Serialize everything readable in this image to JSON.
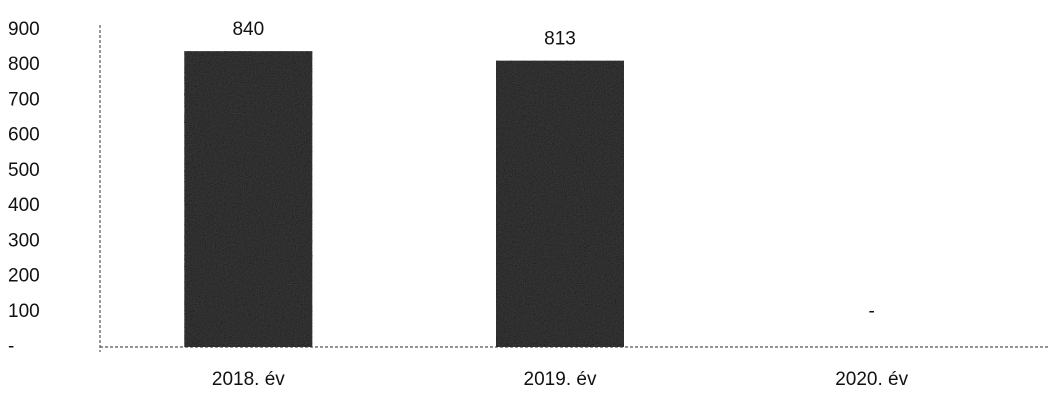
{
  "chart_data": {
    "type": "bar",
    "title": "",
    "xlabel": "",
    "ylabel": "",
    "categories": [
      "2018. év",
      "2019. év",
      "2020. év"
    ],
    "values": [
      840,
      813,
      0
    ],
    "data_labels": [
      "840",
      "813",
      "-"
    ],
    "y_tick_labels": [
      "-",
      "100",
      "200",
      "300",
      "400",
      "500",
      "600",
      "700",
      "800",
      "900"
    ],
    "y_tick_values": [
      0,
      100,
      200,
      300,
      400,
      500,
      600,
      700,
      800,
      900
    ],
    "ylim": [
      0,
      900
    ],
    "grid": false,
    "legend": "none",
    "bar_color": "#3a3a3a"
  }
}
